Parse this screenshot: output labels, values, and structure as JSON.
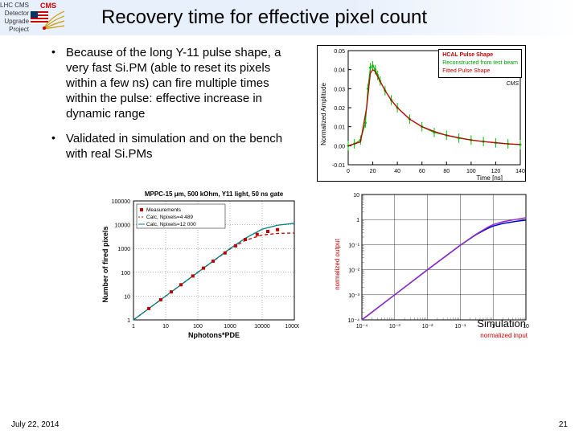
{
  "header": {
    "sidebar_lines": [
      "LHC CMS",
      "Detector",
      "Upgrade",
      "Project"
    ],
    "cms_label": "CMS",
    "title": "Recovery time for effective pixel count"
  },
  "bullets": [
    "Because of the long Y-11 pulse shape, a very fast Si.PM (able to reset its pixels within a few ns) can fire multiple times within the pulse: effective increase in dynamic range",
    "Validated in simulation and on the bench with real Si.PMs"
  ],
  "chart_pulse": {
    "type": "line",
    "ylabel": "Normalized Amplitude",
    "xlabel": "Time [ns]",
    "legend_title": "HCAL Pulse Shape",
    "legend_items": [
      {
        "label": "Reconstructed from test beam",
        "color": "#00c000"
      },
      {
        "label": "Fitted Pulse Shape",
        "color": "#c00000"
      }
    ],
    "cms_note": "CMS",
    "xlim": [
      0,
      140
    ],
    "xtick_step": 20,
    "ylim": [
      -0.01,
      0.05
    ],
    "ytick_step": 0.01,
    "green_x": [
      0,
      5,
      10,
      14,
      16,
      18,
      20,
      22,
      24,
      26,
      30,
      35,
      40,
      50,
      60,
      70,
      80,
      90,
      100,
      110,
      120,
      130,
      140
    ],
    "green_y": [
      0.0,
      0.001,
      0.003,
      0.012,
      0.03,
      0.041,
      0.042,
      0.04,
      0.037,
      0.034,
      0.029,
      0.024,
      0.02,
      0.014,
      0.01,
      0.007,
      0.0055,
      0.004,
      0.003,
      0.0022,
      0.0015,
      0.001,
      0.0006
    ],
    "red_x": [
      0,
      10,
      15,
      18,
      20,
      22,
      25,
      30,
      35,
      40,
      50,
      60,
      70,
      80,
      90,
      100,
      110,
      120,
      130,
      140
    ],
    "red_y": [
      0.0,
      0.002,
      0.02,
      0.038,
      0.04,
      0.039,
      0.035,
      0.029,
      0.024,
      0.02,
      0.014,
      0.01,
      0.0075,
      0.0055,
      0.0042,
      0.003,
      0.0022,
      0.0016,
      0.001,
      0.0006
    ],
    "green_err": 0.0025,
    "line_color_green": "#00c000",
    "line_color_red": "#c00000",
    "grid_color": "#000000",
    "label_fontsize": 8
  },
  "chart_mppc": {
    "type": "scatter-line",
    "title": "MPPC-15 μm, 500 kOhm, Y11 light, 50 ns gate",
    "ylabel": "Number of fired pixels",
    "xlabel": "Nphotons*PDE",
    "legend_items": [
      {
        "label": "Measurements",
        "color": "#c00000",
        "marker": "square"
      },
      {
        "label": "Calc, Npixels=4 489",
        "color": "#c00000",
        "style": "dashed"
      },
      {
        "label": "Calc, Npixels=12 000",
        "color": "#008080",
        "style": "solid"
      }
    ],
    "xlim": [
      1,
      100000
    ],
    "xlog": true,
    "ylim": [
      1,
      100000
    ],
    "ylog": true,
    "meas_x": [
      3,
      7,
      15,
      30,
      70,
      150,
      300,
      700,
      1500,
      3000,
      7000,
      15000,
      30000
    ],
    "meas_y": [
      3,
      7,
      15,
      30,
      70,
      150,
      295,
      650,
      1300,
      2400,
      3900,
      5200,
      6200
    ],
    "calc1_x": [
      1,
      10,
      100,
      1000,
      3000,
      10000,
      30000,
      100000
    ],
    "calc1_y": [
      1,
      10,
      100,
      950,
      2200,
      3700,
      4300,
      4480
    ],
    "calc2_x": [
      1,
      10,
      100,
      1000,
      3000,
      10000,
      30000,
      100000
    ],
    "calc2_y": [
      1,
      10,
      100,
      990,
      2700,
      6500,
      9500,
      11500
    ],
    "marker_color": "#c00000",
    "line1_color": "#c00000",
    "line2_color": "#008080",
    "title_fontsize": 8,
    "label_fontsize": 8
  },
  "chart_sim": {
    "type": "line",
    "ylabel": "normalized output",
    "xlabel": "normalized input",
    "annotation": "Simulation",
    "xlim": [
      0.0001,
      10
    ],
    "xlog": true,
    "ylim": [
      0.0001,
      10
    ],
    "ylog": true,
    "grid_color": "#000000",
    "blue_x": [
      0.0001,
      0.001,
      0.01,
      0.1,
      0.3,
      0.7,
      1,
      2,
      5,
      10
    ],
    "blue_y": [
      0.0001,
      0.001,
      0.01,
      0.095,
      0.25,
      0.45,
      0.55,
      0.7,
      0.85,
      0.95
    ],
    "purple_x": [
      0.0001,
      0.001,
      0.01,
      0.1,
      0.3,
      0.7,
      1,
      2,
      5,
      10
    ],
    "purple_y": [
      0.0001,
      0.001,
      0.01,
      0.095,
      0.26,
      0.5,
      0.63,
      0.82,
      1.02,
      1.18
    ],
    "line_blue": "#0000cc",
    "line_purple": "#9030c0",
    "label_fontsize": 8
  },
  "footer": {
    "date": "July 22, 2014",
    "page": "21"
  }
}
